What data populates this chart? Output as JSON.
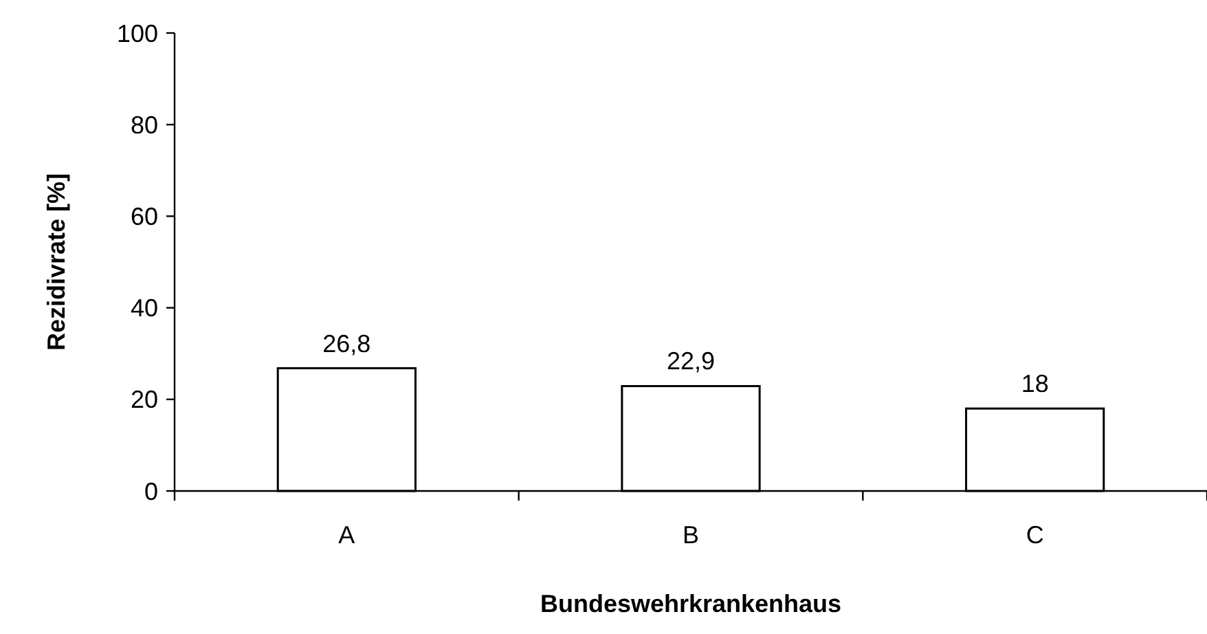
{
  "chart_data": {
    "type": "bar",
    "xlabel": "Bundeswehrkrankenhaus",
    "ylabel": "Rezidivrate [%]",
    "categories": [
      "A",
      "B",
      "C"
    ],
    "values": [
      26.8,
      22.9,
      18
    ],
    "value_labels": [
      "26,8",
      "22,9",
      "18"
    ],
    "color": "#ffffff",
    "ylim": [
      0,
      100
    ],
    "yticks": [
      0,
      20,
      40,
      60,
      80,
      100
    ],
    "grid": false
  }
}
